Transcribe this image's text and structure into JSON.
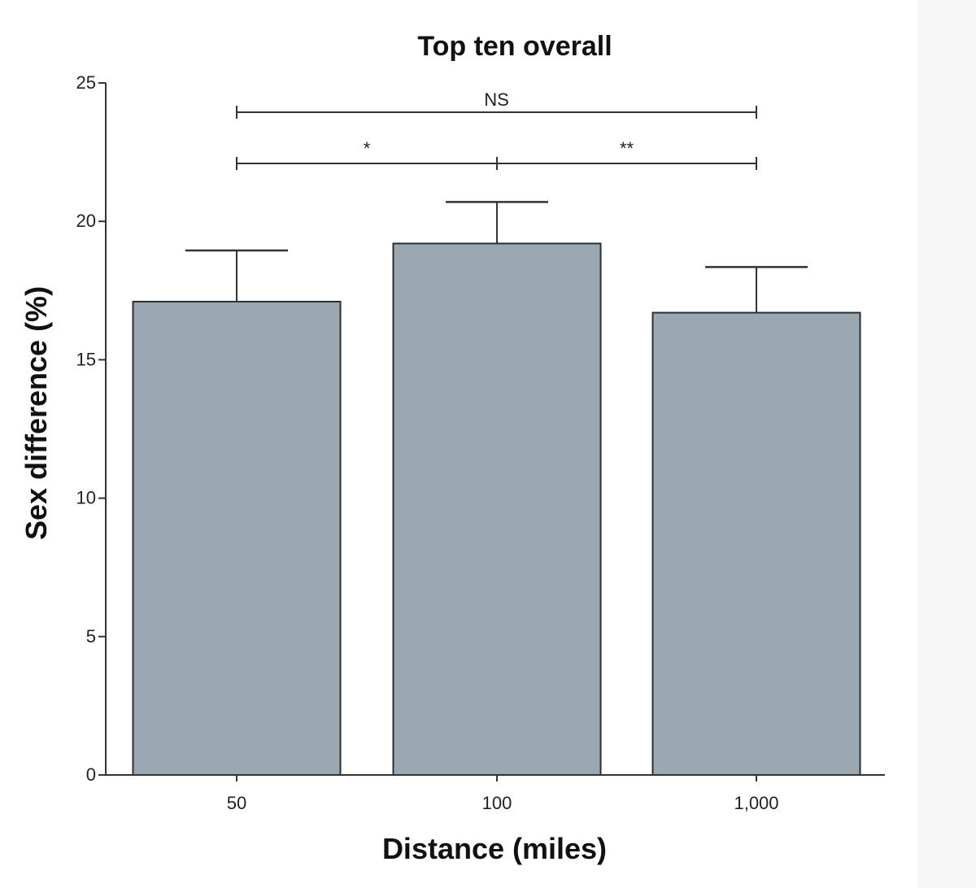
{
  "chart_data": {
    "type": "bar",
    "title": "Top ten overall",
    "xlabel": "Distance (miles)",
    "ylabel": "Sex difference (%)",
    "categories": [
      "50",
      "100",
      "1,000"
    ],
    "values": [
      17.1,
      19.2,
      16.7
    ],
    "error_upper": [
      1.85,
      1.5,
      1.65
    ],
    "ylim": [
      0,
      25
    ],
    "yticks": [
      0,
      5,
      10,
      15,
      20,
      25
    ],
    "grid": false,
    "bar_color": "#9aa8b1",
    "bar_edge_color": "#2a2f33",
    "significance": [
      {
        "from": "50",
        "to": "1,000",
        "label": "NS"
      },
      {
        "from": "50",
        "to": "100",
        "label": "*"
      },
      {
        "from": "100",
        "to": "1,000",
        "label": "**"
      }
    ]
  }
}
